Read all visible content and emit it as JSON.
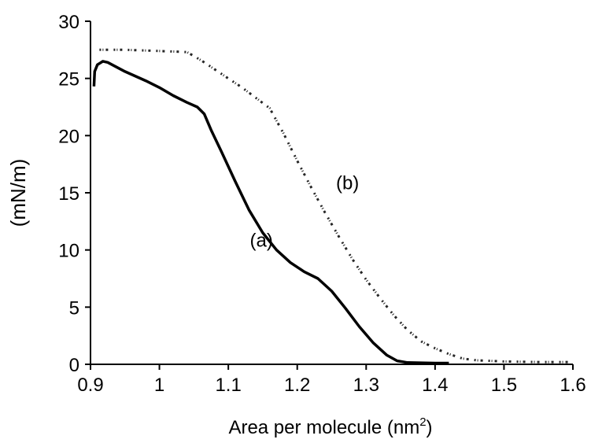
{
  "chart_data": {
    "type": "line",
    "title": "",
    "xlabel_main": "Area per molecule (nm",
    "xlabel_sup": "2",
    "xlabel_close": ")",
    "ylabel": "(mN/m)",
    "xlim": [
      0.9,
      1.6
    ],
    "ylim": [
      0,
      30
    ],
    "x_ticks": [
      "0.9",
      "1",
      "1.1",
      "1.2",
      "1.3",
      "1.4",
      "1.5",
      "1.6"
    ],
    "y_ticks": [
      "0",
      "5",
      "10",
      "15",
      "20",
      "25",
      "30"
    ],
    "grid": false,
    "annotations": [
      {
        "text": "(a)",
        "x": 1.148,
        "y": 10.3
      },
      {
        "text": "(b)",
        "x": 1.273,
        "y": 15.3
      }
    ],
    "series": [
      {
        "label": "(a)",
        "style": "solid",
        "color": "#000000",
        "points": [
          [
            0.905,
            24.3
          ],
          [
            0.906,
            25.6
          ],
          [
            0.91,
            26.2
          ],
          [
            0.918,
            26.5
          ],
          [
            0.925,
            26.4
          ],
          [
            0.95,
            25.6
          ],
          [
            0.98,
            24.8
          ],
          [
            1.0,
            24.2
          ],
          [
            1.02,
            23.5
          ],
          [
            1.04,
            22.9
          ],
          [
            1.055,
            22.5
          ],
          [
            1.065,
            21.9
          ],
          [
            1.075,
            20.5
          ],
          [
            1.09,
            18.6
          ],
          [
            1.11,
            16.0
          ],
          [
            1.13,
            13.5
          ],
          [
            1.15,
            11.5
          ],
          [
            1.17,
            10.0
          ],
          [
            1.19,
            8.9
          ],
          [
            1.21,
            8.1
          ],
          [
            1.23,
            7.5
          ],
          [
            1.25,
            6.4
          ],
          [
            1.27,
            4.9
          ],
          [
            1.29,
            3.3
          ],
          [
            1.31,
            1.9
          ],
          [
            1.33,
            0.8
          ],
          [
            1.345,
            0.3
          ],
          [
            1.36,
            0.15
          ],
          [
            1.4,
            0.1
          ],
          [
            1.42,
            0.1
          ]
        ]
      },
      {
        "label": "(b)",
        "style": "dashed",
        "color": "#000000",
        "points": [
          [
            0.913,
            27.5
          ],
          [
            0.95,
            27.5
          ],
          [
            1.0,
            27.4
          ],
          [
            1.04,
            27.3
          ],
          [
            1.06,
            26.6
          ],
          [
            1.08,
            25.8
          ],
          [
            1.1,
            25.0
          ],
          [
            1.12,
            24.2
          ],
          [
            1.14,
            23.3
          ],
          [
            1.16,
            22.4
          ],
          [
            1.18,
            20.2
          ],
          [
            1.2,
            17.8
          ],
          [
            1.22,
            15.5
          ],
          [
            1.24,
            13.3
          ],
          [
            1.26,
            11.2
          ],
          [
            1.28,
            9.2
          ],
          [
            1.3,
            7.4
          ],
          [
            1.32,
            5.8
          ],
          [
            1.34,
            4.3
          ],
          [
            1.36,
            3.0
          ],
          [
            1.38,
            2.0
          ],
          [
            1.4,
            1.4
          ],
          [
            1.42,
            0.9
          ],
          [
            1.44,
            0.5
          ],
          [
            1.46,
            0.35
          ],
          [
            1.5,
            0.25
          ],
          [
            1.55,
            0.2
          ],
          [
            1.6,
            0.2
          ]
        ]
      }
    ]
  }
}
